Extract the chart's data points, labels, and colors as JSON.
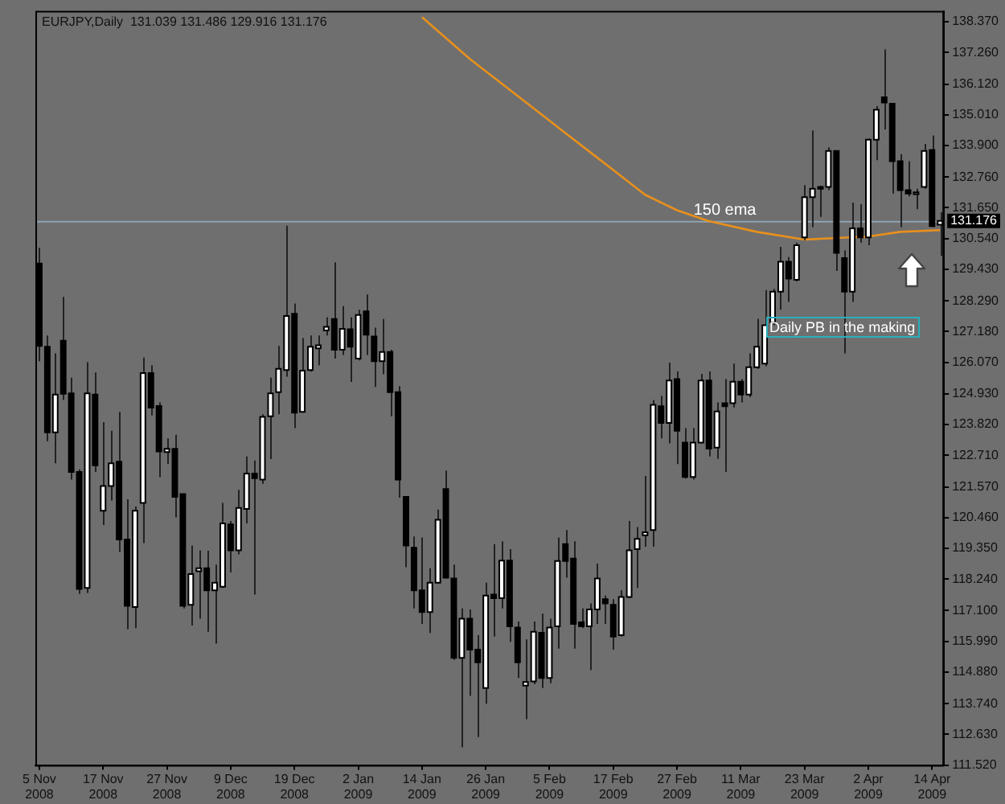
{
  "chart_data": {
    "type": "candlestick",
    "title": "EURJPY,Daily  131.039 131.486 129.916 131.176",
    "categories": [
      "5 Nov 2008",
      null,
      null,
      null,
      null,
      null,
      null,
      null,
      "17 Nov 2008",
      null,
      null,
      null,
      null,
      null,
      null,
      null,
      "27 Nov 2008",
      null,
      null,
      null,
      null,
      null,
      null,
      null,
      "9 Dec 2008",
      null,
      null,
      null,
      null,
      null,
      null,
      null,
      "19 Dec 2008",
      null,
      null,
      null,
      null,
      null,
      null,
      null,
      "2 Jan 2009",
      null,
      null,
      null,
      null,
      null,
      null,
      null,
      "14 Jan 2009",
      null,
      null,
      null,
      null,
      null,
      null,
      null,
      "26 Jan 2009",
      null,
      null,
      null,
      null,
      null,
      null,
      null,
      "5 Feb 2009",
      null,
      null,
      null,
      null,
      null,
      null,
      null,
      "17 Feb 2009",
      null,
      null,
      null,
      null,
      null,
      null,
      null,
      "27 Feb 2009",
      null,
      null,
      null,
      null,
      null,
      null,
      null,
      "11 Mar 2009",
      null,
      null,
      null,
      null,
      null,
      null,
      null,
      "23 Mar 2009",
      null,
      null,
      null,
      null,
      null,
      null,
      null,
      "2 Apr 2009",
      null,
      null,
      null,
      null,
      null,
      null,
      null,
      "14 Apr 2009",
      null
    ],
    "ohlc": [
      [
        129.64,
        130.2,
        126.11,
        126.66
      ],
      [
        126.63,
        127.04,
        123.22,
        123.54
      ],
      [
        123.54,
        126.39,
        122.42,
        124.9
      ],
      [
        126.85,
        128.43,
        124.71,
        124.93
      ],
      [
        124.95,
        125.51,
        121.83,
        122.11
      ],
      [
        122.11,
        122.2,
        117.7,
        117.88
      ],
      [
        117.92,
        126.07,
        117.74,
        124.95
      ],
      [
        124.9,
        125.7,
        122.11,
        122.35
      ],
      [
        120.71,
        123.91,
        120.19,
        121.6
      ],
      [
        121.6,
        123.6,
        121.08,
        122.42
      ],
      [
        122.48,
        124.28,
        119.22,
        119.67
      ],
      [
        119.67,
        121.12,
        116.43,
        117.27
      ],
      [
        117.23,
        120.86,
        116.47,
        120.71
      ],
      [
        120.99,
        126.24,
        119.54,
        125.68
      ],
      [
        125.68,
        125.96,
        124.15,
        124.43
      ],
      [
        124.49,
        124.62,
        121.92,
        122.85
      ],
      [
        122.83,
        123.32,
        122.39,
        122.94
      ],
      [
        122.94,
        123.45,
        120.47,
        121.21
      ],
      [
        121.31,
        121.31,
        117.18,
        117.27
      ],
      [
        117.31,
        119.45,
        116.56,
        118.42
      ],
      [
        118.52,
        119.28,
        116.81,
        118.63
      ],
      [
        118.63,
        119.26,
        116.34,
        117.83
      ],
      [
        117.83,
        118.76,
        115.91,
        118.11
      ],
      [
        117.96,
        120.99,
        117.92,
        120.25
      ],
      [
        120.21,
        120.34,
        118.48,
        119.28
      ],
      [
        119.28,
        121.46,
        119.13,
        120.81
      ],
      [
        120.77,
        122.67,
        120.25,
        122.05
      ],
      [
        122.05,
        122.52,
        117.68,
        121.88
      ],
      [
        121.83,
        124.19,
        121.68,
        124.1
      ],
      [
        124.12,
        125.51,
        122.57,
        124.95
      ],
      [
        124.99,
        126.66,
        124.19,
        125.83
      ],
      [
        125.79,
        131.0,
        125.55,
        127.74
      ],
      [
        127.82,
        128.19,
        123.69,
        124.25
      ],
      [
        124.28,
        126.94,
        124.25,
        125.77
      ],
      [
        125.79,
        127.04,
        125.73,
        126.63
      ],
      [
        126.57,
        127.04,
        125.96,
        126.68
      ],
      [
        127.22,
        127.69,
        127.04,
        127.35
      ],
      [
        127.63,
        129.68,
        126.2,
        126.52
      ],
      [
        126.52,
        128.1,
        126.33,
        127.28
      ],
      [
        127.26,
        127.69,
        125.36,
        126.63
      ],
      [
        126.2,
        127.97,
        126.14,
        127.78
      ],
      [
        127.91,
        128.52,
        126.33,
        127.07
      ],
      [
        127.0,
        127.32,
        125.18,
        126.11
      ],
      [
        126.11,
        127.63,
        125.64,
        126.44
      ],
      [
        126.44,
        126.52,
        124.12,
        124.99
      ],
      [
        124.99,
        125.21,
        121.18,
        121.83
      ],
      [
        121.21,
        121.21,
        118.67,
        119.45
      ],
      [
        119.37,
        119.78,
        117.18,
        117.83
      ],
      [
        117.83,
        119.74,
        116.62,
        117.05
      ],
      [
        117.05,
        118.63,
        116.29,
        118.11
      ],
      [
        118.11,
        120.75,
        118.07,
        120.38
      ],
      [
        121.49,
        122.16,
        118.26,
        118.29
      ],
      [
        118.26,
        118.76,
        115.32,
        115.39
      ],
      [
        115.39,
        117.18,
        112.16,
        116.81
      ],
      [
        116.81,
        117.14,
        114.02,
        115.69
      ],
      [
        115.69,
        116.21,
        112.53,
        115.23
      ],
      [
        114.3,
        118.11,
        113.74,
        117.64
      ],
      [
        117.68,
        119.5,
        116.16,
        117.55
      ],
      [
        117.55,
        119.6,
        117.18,
        118.91
      ],
      [
        118.91,
        119.32,
        115.97,
        116.53
      ],
      [
        116.49,
        116.71,
        114.67,
        115.23
      ],
      [
        114.39,
        116.06,
        113.18,
        114.52
      ],
      [
        114.54,
        116.71,
        114.44,
        116.34
      ],
      [
        116.3,
        116.99,
        114.3,
        114.67
      ],
      [
        114.67,
        116.81,
        114.48,
        116.49
      ],
      [
        116.53,
        119.74,
        115.73,
        118.89
      ],
      [
        119.5,
        120.01,
        118.29,
        118.89
      ],
      [
        118.98,
        119.6,
        115.73,
        116.62
      ],
      [
        116.68,
        117.18,
        116.47,
        116.53
      ],
      [
        116.53,
        117.36,
        114.95,
        117.14
      ],
      [
        117.14,
        118.8,
        116.62,
        118.26
      ],
      [
        117.51,
        117.64,
        116.62,
        117.36
      ],
      [
        117.31,
        117.51,
        115.69,
        116.16
      ],
      [
        116.21,
        117.83,
        116.16,
        117.59
      ],
      [
        117.59,
        120.34,
        117.55,
        119.28
      ],
      [
        119.32,
        120.12,
        117.92,
        119.69
      ],
      [
        119.82,
        121.96,
        119.41,
        119.93
      ],
      [
        120.01,
        124.71,
        119.41,
        124.53
      ],
      [
        124.48,
        124.85,
        123.32,
        123.88
      ],
      [
        123.88,
        126.06,
        123.14,
        125.41
      ],
      [
        125.46,
        125.74,
        122.39,
        123.6
      ],
      [
        123.17,
        123.69,
        121.87,
        121.93
      ],
      [
        121.93,
        123.69,
        121.83,
        123.17
      ],
      [
        123.17,
        125.65,
        123.14,
        125.41
      ],
      [
        125.41,
        125.74,
        122.67,
        122.95
      ],
      [
        122.99,
        124.62,
        122.58,
        124.29
      ],
      [
        124.59,
        125.46,
        122.11,
        124.48
      ],
      [
        124.59,
        126.02,
        124.44,
        125.37
      ],
      [
        125.37,
        125.46,
        124.62,
        124.9
      ],
      [
        124.9,
        126.39,
        124.81,
        125.89
      ],
      [
        125.89,
        127.64,
        125.83,
        126.63
      ],
      [
        126.02,
        128.68,
        125.93,
        127.41
      ],
      [
        127.51,
        128.72,
        127.41,
        128.62
      ],
      [
        128.62,
        130.24,
        127.97,
        129.7
      ],
      [
        129.7,
        129.87,
        128.25,
        129.09
      ],
      [
        129.05,
        130.39,
        128.99,
        130.3
      ],
      [
        130.58,
        132.47,
        130.48,
        132.03
      ],
      [
        132.03,
        134.44,
        130.95,
        132.34
      ],
      [
        132.4,
        132.44,
        131.32,
        132.34
      ],
      [
        132.4,
        133.83,
        132.29,
        133.7
      ],
      [
        133.7,
        133.7,
        129.37,
        130.02
      ],
      [
        129.83,
        130.11,
        126.39,
        128.62
      ],
      [
        128.62,
        131.84,
        128.25,
        130.91
      ],
      [
        130.91,
        131.78,
        130.39,
        130.58
      ],
      [
        130.58,
        134.15,
        130.3,
        134.11
      ],
      [
        134.11,
        135.32,
        133.37,
        135.19
      ],
      [
        135.64,
        137.37,
        134.48,
        135.45
      ],
      [
        135.41,
        135.41,
        132.16,
        133.33
      ],
      [
        133.33,
        133.59,
        130.95,
        132.29
      ],
      [
        132.29,
        133.33,
        132.06,
        132.16
      ],
      [
        132.14,
        132.34,
        131.6,
        132.21
      ],
      [
        132.4,
        133.96,
        132.34,
        133.7
      ],
      [
        133.74,
        134.26,
        130.95,
        130.99
      ],
      [
        131.039,
        131.486,
        129.916,
        131.176
      ]
    ],
    "series": [
      {
        "name": "150 ema",
        "type": "line",
        "color": "#e8901c",
        "values": [
          null,
          null,
          null,
          null,
          null,
          null,
          null,
          null,
          null,
          null,
          null,
          null,
          null,
          null,
          null,
          null,
          null,
          null,
          null,
          null,
          null,
          null,
          null,
          null,
          null,
          null,
          null,
          null,
          null,
          null,
          null,
          null,
          null,
          null,
          null,
          null,
          null,
          null,
          null,
          null,
          null,
          null,
          null,
          null,
          null,
          null,
          null,
          null,
          138.54,
          null,
          null,
          null,
          null,
          null,
          137.03,
          null,
          null,
          null,
          null,
          null,
          135.69,
          null,
          null,
          null,
          null,
          null,
          134.35,
          null,
          null,
          null,
          133.46,
          null,
          null,
          null,
          null,
          null,
          132.12,
          null,
          null,
          null,
          131.56,
          null,
          null,
          null,
          131.17,
          null,
          null,
          null,
          null,
          null,
          130.78,
          null,
          null,
          null,
          null,
          null,
          130.5,
          null,
          null,
          null,
          130.56,
          null,
          null,
          null,
          130.61,
          null,
          null,
          null,
          130.78,
          null,
          null,
          null,
          null,
          130.84
        ]
      }
    ],
    "ylim": [
      111.52,
      138.76
    ],
    "yticks": [
      {
        "value": 138.37,
        "label": "138.370"
      },
      {
        "value": 137.26,
        "label": "137.260"
      },
      {
        "value": 136.12,
        "label": "136.120"
      },
      {
        "value": 135.01,
        "label": "135.010"
      },
      {
        "value": 133.9,
        "label": "133.900"
      },
      {
        "value": 132.76,
        "label": "132.760"
      },
      {
        "value": 131.65,
        "label": "131.650"
      },
      {
        "value": 130.54,
        "label": "130.540"
      },
      {
        "value": 129.43,
        "label": "129.430"
      },
      {
        "value": 128.29,
        "label": "128.290"
      },
      {
        "value": 127.18,
        "label": "127.180"
      },
      {
        "value": 126.07,
        "label": "126.070"
      },
      {
        "value": 124.93,
        "label": "124.930"
      },
      {
        "value": 123.82,
        "label": "123.820"
      },
      {
        "value": 122.71,
        "label": "122.710"
      },
      {
        "value": 121.57,
        "label": "121.570"
      },
      {
        "value": 120.46,
        "label": "120.460"
      },
      {
        "value": 119.35,
        "label": "119.350"
      },
      {
        "value": 118.24,
        "label": "118.240"
      },
      {
        "value": 117.1,
        "label": "117.100"
      },
      {
        "value": 115.99,
        "label": "115.990"
      },
      {
        "value": 114.88,
        "label": "114.880"
      },
      {
        "value": 113.74,
        "label": "113.740"
      },
      {
        "value": 112.63,
        "label": "112.630"
      },
      {
        "value": 111.52,
        "label": "111.520"
      }
    ],
    "ref_lines": [
      {
        "axis": "y",
        "value": 131.176,
        "label": "131.176",
        "color": "#8fa2b2"
      }
    ],
    "annotations": [
      "Daily PB in the making"
    ],
    "grid": false,
    "legend": false
  }
}
